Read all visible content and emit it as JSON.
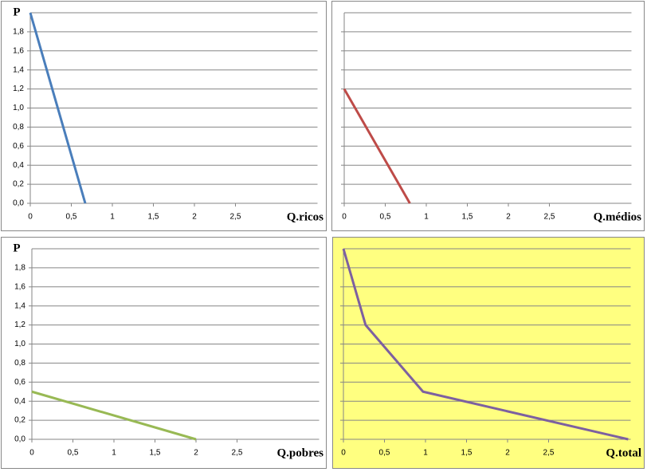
{
  "chart_data": [
    {
      "type": "line",
      "y_label": "P",
      "x_label": "Q.ricos",
      "show_ytick_labels": true,
      "x": [
        0,
        0.67
      ],
      "series": [
        {
          "color": "#4a7ebb",
          "values": [
            2.0,
            0.0
          ]
        }
      ],
      "xlim": [
        0,
        3.5
      ],
      "ylim": [
        0,
        2
      ],
      "xticks": [
        0,
        {
          "value": 0.5,
          "label": "0,5"
        },
        1,
        {
          "value": 1.5,
          "label": "1,5"
        },
        2,
        {
          "value": 2.5,
          "label": "2,5"
        }
      ],
      "yticks": [
        {
          "value": 0,
          "label": "0,0"
        },
        {
          "value": 0.2,
          "label": "0,2"
        },
        {
          "value": 0.4,
          "label": "0,4"
        },
        {
          "value": 0.6,
          "label": "0,6"
        },
        {
          "value": 0.8,
          "label": "0,8"
        },
        {
          "value": 1,
          "label": "1,0"
        },
        {
          "value": 1.2,
          "label": "1,2"
        },
        {
          "value": 1.4,
          "label": "1,4"
        },
        {
          "value": 1.6,
          "label": "1,6"
        },
        {
          "value": 1.8,
          "label": "1,8"
        }
      ],
      "grid": true,
      "background": "#ffffff"
    },
    {
      "type": "line",
      "x_label": "Q.médios",
      "show_ytick_labels": false,
      "x": [
        0,
        0.8
      ],
      "series": [
        {
          "color": "#be4b48",
          "values": [
            1.2,
            0.0
          ]
        }
      ],
      "xlim": [
        0,
        3.5
      ],
      "ylim": [
        0,
        2
      ],
      "xticks": [
        0,
        {
          "value": 0.5,
          "label": "0,5"
        },
        1,
        {
          "value": 1.5,
          "label": "1,5"
        },
        2,
        {
          "value": 2.5,
          "label": "2,5"
        }
      ],
      "yticks": [
        0,
        0.2,
        0.4,
        0.6,
        0.8,
        1,
        1.2,
        1.4,
        1.6,
        1.8
      ],
      "grid": true,
      "background": "#ffffff"
    },
    {
      "type": "line",
      "y_label": "P",
      "x_label": "Q.pobres",
      "show_ytick_labels": true,
      "x": [
        0,
        2
      ],
      "series": [
        {
          "color": "#98b954",
          "values": [
            0.5,
            0.0
          ]
        }
      ],
      "xlim": [
        0,
        3.5
      ],
      "ylim": [
        0,
        2
      ],
      "xticks": [
        0,
        {
          "value": 0.5,
          "label": "0,5"
        },
        1,
        {
          "value": 1.5,
          "label": "1,5"
        },
        2,
        {
          "value": 2.5,
          "label": "2,5"
        }
      ],
      "yticks": [
        {
          "value": 0,
          "label": "0,0"
        },
        {
          "value": 0.2,
          "label": "0,2"
        },
        {
          "value": 0.4,
          "label": "0,4"
        },
        {
          "value": 0.6,
          "label": "0,6"
        },
        {
          "value": 0.8,
          "label": "0,8"
        },
        {
          "value": 1,
          "label": "1,0"
        },
        {
          "value": 1.2,
          "label": "1,2"
        },
        {
          "value": 1.4,
          "label": "1,4"
        },
        {
          "value": 1.6,
          "label": "1,6"
        },
        {
          "value": 1.8,
          "label": "1,8"
        }
      ],
      "grid": true,
      "background": "#ffffff"
    },
    {
      "type": "line",
      "x_label": "Q.total",
      "show_ytick_labels": false,
      "x": [
        0,
        0.27,
        0.97,
        3.47
      ],
      "series": [
        {
          "color": "#7d60a0",
          "values": [
            2.0,
            1.2,
            0.5,
            0.0
          ]
        }
      ],
      "xlim": [
        0,
        3.5
      ],
      "ylim": [
        0,
        2
      ],
      "xticks": [
        0,
        {
          "value": 0.5,
          "label": "0,5"
        },
        1,
        {
          "value": 1.5,
          "label": "1,5"
        },
        2,
        {
          "value": 2.5,
          "label": "2,5"
        }
      ],
      "yticks": [
        0,
        0.2,
        0.4,
        0.6,
        0.8,
        1,
        1.2,
        1.4,
        1.6,
        1.8
      ],
      "grid": true,
      "background": "#ffff80"
    }
  ]
}
